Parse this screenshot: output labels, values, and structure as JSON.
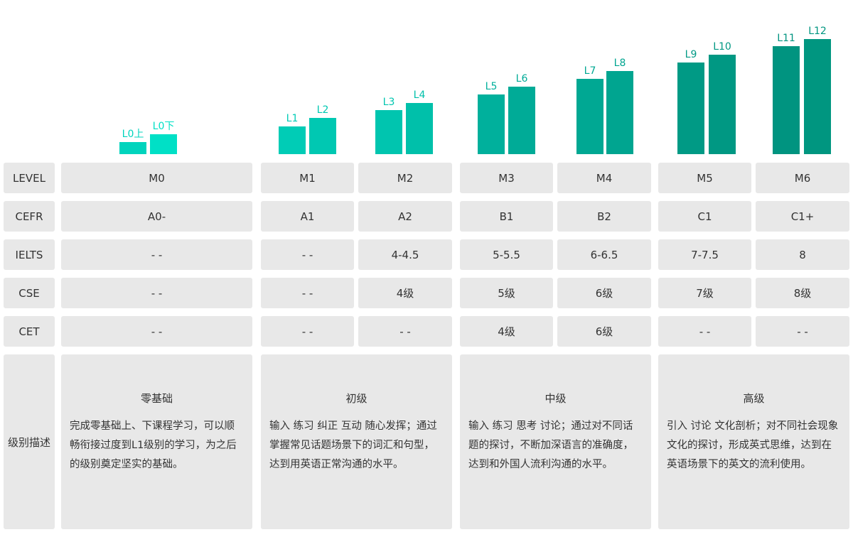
{
  "chart_data": {
    "type": "bar",
    "categories": [
      "L0上",
      "L0下",
      "L1",
      "L2",
      "L3",
      "L4",
      "L5",
      "L6",
      "L7",
      "L8",
      "L9",
      "L10",
      "L11",
      "L12"
    ],
    "values": [
      17,
      28,
      39,
      51,
      62,
      72,
      84,
      95,
      106,
      117,
      129,
      140,
      152,
      162
    ],
    "colors": [
      "#00d4bd",
      "#00e0c6",
      "#00ccb6",
      "#00c8b2",
      "#00c5af",
      "#00c0aa",
      "#00b09c",
      "#00ab97",
      "#00a893",
      "#00a590",
      "#009a85",
      "#009883",
      "#009480",
      "#009680"
    ]
  },
  "table": {
    "row_heads": {
      "level": "LEVEL",
      "cefr": "CEFR",
      "ielts": "IELTS",
      "cse": "CSE",
      "cet": "CET",
      "desc": "级别描述"
    },
    "level": [
      "M0",
      "M1",
      "M2",
      "M3",
      "M4",
      "M5",
      "M6"
    ],
    "cefr": [
      "A0-",
      "A1",
      "A2",
      "B1",
      "B2",
      "C1",
      "C1+"
    ],
    "ielts": [
      "- -",
      "- -",
      "4-4.5",
      "5-5.5",
      "6-6.5",
      "7-7.5",
      "8"
    ],
    "cse": [
      "- -",
      "- -",
      "4级",
      "5级",
      "6级",
      "7级",
      "8级"
    ],
    "cet": [
      "- -",
      "- -",
      "- -",
      "4级",
      "6级",
      "- -",
      "- -"
    ],
    "descriptions": [
      {
        "title": "零基础",
        "text": "完成零基础上、下课程学习，可以顺畅衔接过度到L1级别的学习，为之后的级别奠定坚实的基础。"
      },
      {
        "title": "初级",
        "text": "输入 练习 纠正 互动 随心发挥；通过掌握常见话题场景下的词汇和句型，达到用英语正常沟通的水平。"
      },
      {
        "title": "中级",
        "text": "输入 练习 思考 讨论；通过对不同话题的探讨，不断加深语言的准确度，达到和外国人流利沟通的水平。"
      },
      {
        "title": "高级",
        "text": "引入 讨论 文化剖析；对不同社会现象文化的探讨，形成英式思维，达到在英语场景下的英文的流利使用。"
      }
    ]
  }
}
